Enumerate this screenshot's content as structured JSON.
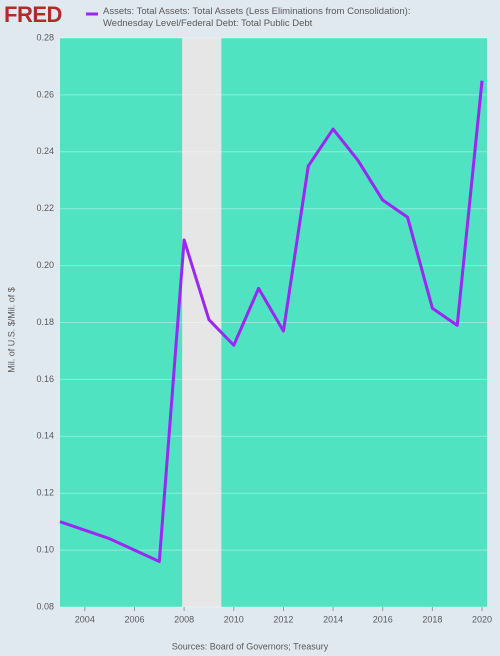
{
  "logo": "FRED",
  "chart_data": {
    "type": "line",
    "x": [
      2003,
      2004,
      2005,
      2006,
      2007,
      2008,
      2009,
      2010,
      2011,
      2012,
      2013,
      2014,
      2015,
      2016,
      2017,
      2018,
      2019,
      2020
    ],
    "series": [
      {
        "name": "Assets: Total Assets: Total Assets (Less Eliminations from Consolidation): Wednesday Level/Federal Debt: Total Public Debt",
        "color": "#9b27f5",
        "values": [
          0.11,
          0.107,
          0.104,
          0.1,
          0.096,
          0.209,
          0.181,
          0.172,
          0.192,
          0.177,
          0.235,
          0.248,
          0.237,
          0.223,
          0.217,
          0.185,
          0.179,
          0.265
        ]
      }
    ],
    "xlim": [
      2003,
      2020.2
    ],
    "xticks": [
      2004,
      2006,
      2008,
      2010,
      2012,
      2014,
      2016,
      2018,
      2020
    ],
    "ylim": [
      0.08,
      0.28
    ],
    "yticks": [
      {
        "value": 0.08,
        "label": "0.08"
      },
      {
        "value": 0.1,
        "label": "0.10"
      },
      {
        "value": 0.12,
        "label": "0.12"
      },
      {
        "value": 0.14,
        "label": "0.14"
      },
      {
        "value": 0.16,
        "label": "0.16"
      },
      {
        "value": 0.18,
        "label": "0.18"
      },
      {
        "value": 0.2,
        "label": "0.20"
      },
      {
        "value": 0.22,
        "label": "0.22"
      },
      {
        "value": 0.24,
        "label": "0.24"
      },
      {
        "value": 0.26,
        "label": "0.26"
      },
      {
        "value": 0.28,
        "label": "0.28"
      }
    ],
    "ylabel": "Mil. of U.S. $/Mil. of $",
    "recession": [
      2007.92,
      2009.5
    ],
    "recession_color": "#e6e6e6",
    "plot_background": "#50e3c2",
    "grid": true,
    "source": "Sources: Board of Governors; Treasury"
  }
}
